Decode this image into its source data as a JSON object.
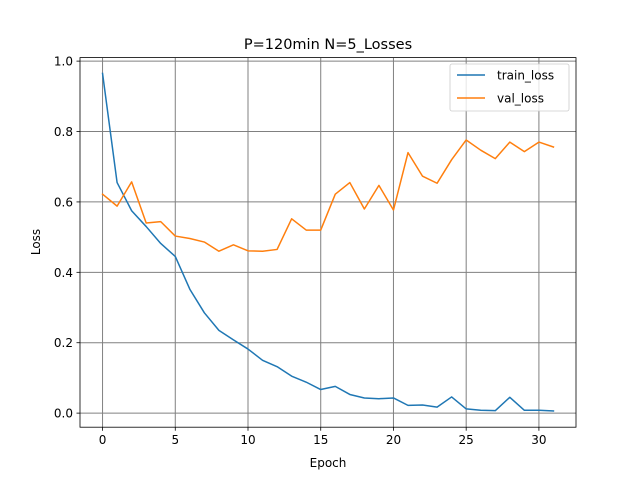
{
  "chart_data": {
    "type": "line",
    "title": "P=120min N=5_Losses",
    "xlabel": "Epoch",
    "ylabel": "Loss",
    "xlim": [
      -1.55,
      32.55
    ],
    "ylim": [
      -0.04,
      1.01
    ],
    "xticks": [
      0,
      5,
      10,
      15,
      20,
      25,
      30
    ],
    "yticks": [
      0.0,
      0.2,
      0.4,
      0.6,
      0.8,
      1.0
    ],
    "xtick_labels": [
      "0",
      "5",
      "10",
      "15",
      "20",
      "25",
      "30"
    ],
    "ytick_labels": [
      "0.0",
      "0.2",
      "0.4",
      "0.6",
      "0.8",
      "1.0"
    ],
    "grid": true,
    "legend_position": "top-right",
    "x": [
      0,
      1,
      2,
      3,
      4,
      5,
      6,
      7,
      8,
      9,
      10,
      11,
      12,
      13,
      14,
      15,
      16,
      17,
      18,
      19,
      20,
      21,
      22,
      23,
      24,
      25,
      26,
      27,
      28,
      29,
      30,
      31
    ],
    "series": [
      {
        "name": "train_loss",
        "color": "#1f77b4",
        "values": [
          0.965,
          0.655,
          0.575,
          0.53,
          0.482,
          0.445,
          0.352,
          0.285,
          0.235,
          0.208,
          0.182,
          0.15,
          0.132,
          0.105,
          0.088,
          0.067,
          0.076,
          0.053,
          0.043,
          0.041,
          0.043,
          0.022,
          0.023,
          0.017,
          0.046,
          0.012,
          0.008,
          0.007,
          0.045,
          0.008,
          0.008,
          0.006
        ]
      },
      {
        "name": "val_loss",
        "color": "#ff7f0e",
        "values": [
          0.622,
          0.588,
          0.657,
          0.54,
          0.544,
          0.503,
          0.496,
          0.486,
          0.46,
          0.478,
          0.461,
          0.46,
          0.465,
          0.552,
          0.52,
          0.52,
          0.622,
          0.655,
          0.58,
          0.647,
          0.577,
          0.74,
          0.673,
          0.653,
          0.72,
          0.776,
          0.747,
          0.723,
          0.77,
          0.743,
          0.77,
          0.756
        ]
      }
    ]
  }
}
